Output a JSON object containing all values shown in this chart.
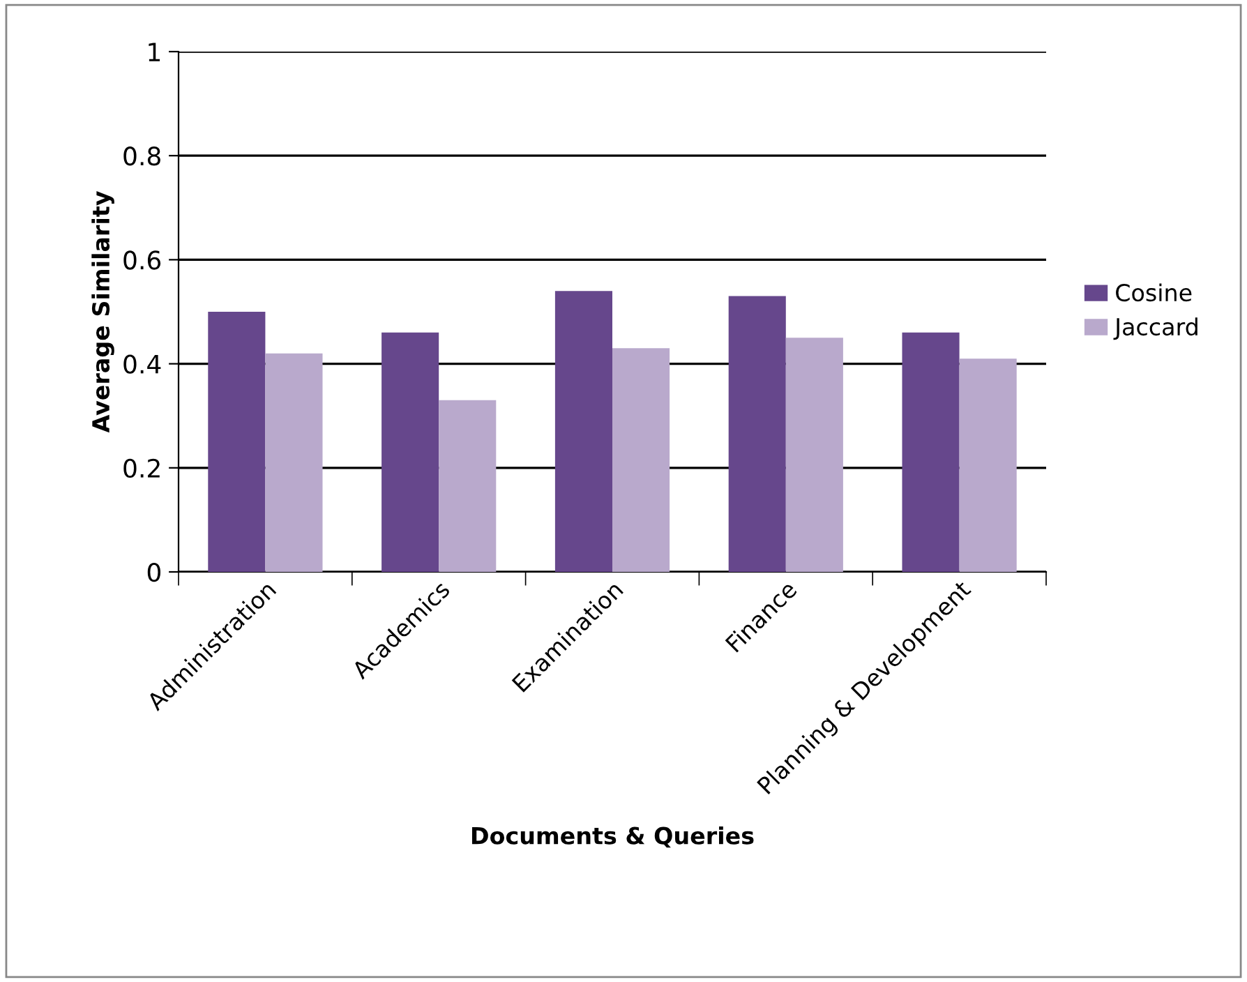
{
  "chart_data": {
    "type": "bar",
    "xlabel": "Documents & Queries",
    "ylabel": "Average Similarity",
    "categories": [
      "Administration",
      "Academics",
      "Examination",
      "Finance",
      "Planning & Development"
    ],
    "series": [
      {
        "name": "Cosine",
        "color": "#66478c",
        "values": [
          0.5,
          0.46,
          0.54,
          0.53,
          0.46
        ]
      },
      {
        "name": "Jaccard",
        "color": "#b9a9cc",
        "values": [
          0.42,
          0.33,
          0.43,
          0.45,
          0.41
        ]
      }
    ],
    "ylim": [
      0,
      1
    ],
    "yticks": [
      0,
      0.2,
      0.4,
      0.6,
      0.8,
      1
    ],
    "grid": "y",
    "legend": "right"
  }
}
